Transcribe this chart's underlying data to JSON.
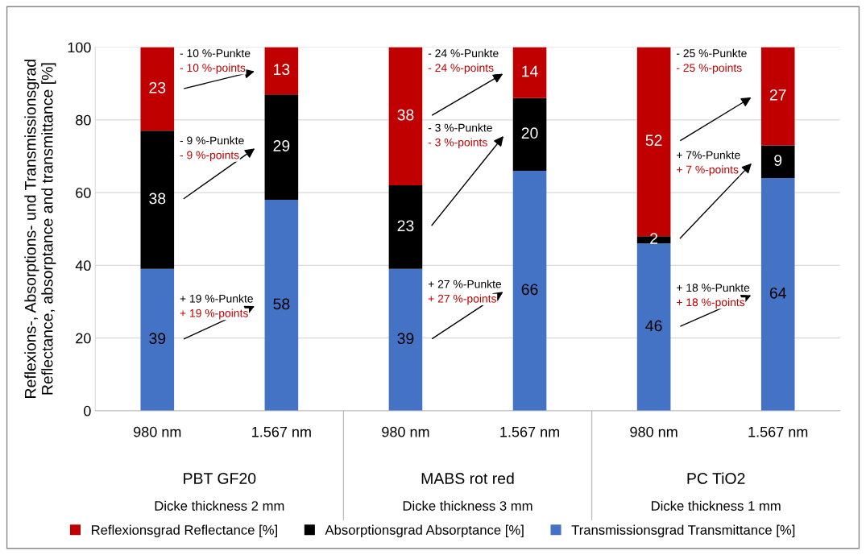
{
  "chart_data": {
    "type": "bar",
    "stacked": true,
    "ylabel": "Reflexions-, Absorptions- und Transmissionsgrad\nReflectance, absorptance and transmittance [%]",
    "categories": [
      "980 nm",
      "1.567 nm",
      "980 nm",
      "1.567 nm",
      "980 nm",
      "1.567 nm"
    ],
    "series": [
      {
        "name": "Transmissionsgrad Transmittance [%]",
        "color": "#4472c4",
        "values": [
          39,
          58,
          39,
          66,
          46,
          64
        ]
      },
      {
        "name": "Absorptionsgrad Absorptance [%]",
        "color": "#000000",
        "values": [
          38,
          29,
          23,
          20,
          2,
          9
        ]
      },
      {
        "name": "Reflexionsgrad Reflectance [%]",
        "color": "#c00000",
        "values": [
          23,
          13,
          38,
          14,
          52,
          27
        ]
      }
    ],
    "ylim": [
      0,
      100
    ],
    "yticks": [
      0,
      20,
      40,
      60,
      80,
      100
    ],
    "grid": "y",
    "legend": "bottom",
    "data_labels": true,
    "annotations": [
      "- 10 %-Punkte\n- 10 %-points",
      "- 9 %-Punkte\n- 9 %-points",
      "+ 19 %-Punkte\n+ 19 %-points",
      "- 24 %-Punkte\n- 24 %-points",
      "- 3 %-Punkte\n- 3 %-points",
      "+ 27 %-Punkte\n+ 27 %-points",
      "- 25 %-Punkte\n- 25 %-points",
      "+ 7%-Punkte\n+ 7 %-points",
      "+ 18 %-Punkte\n+ 18 %-points",
      "PBT GF20\nDicke thickness 2 mm",
      "MABS rot red\nDicke thickness 3 mm",
      "PC TiO2\nDicke thickness 1 mm"
    ]
  }
}
